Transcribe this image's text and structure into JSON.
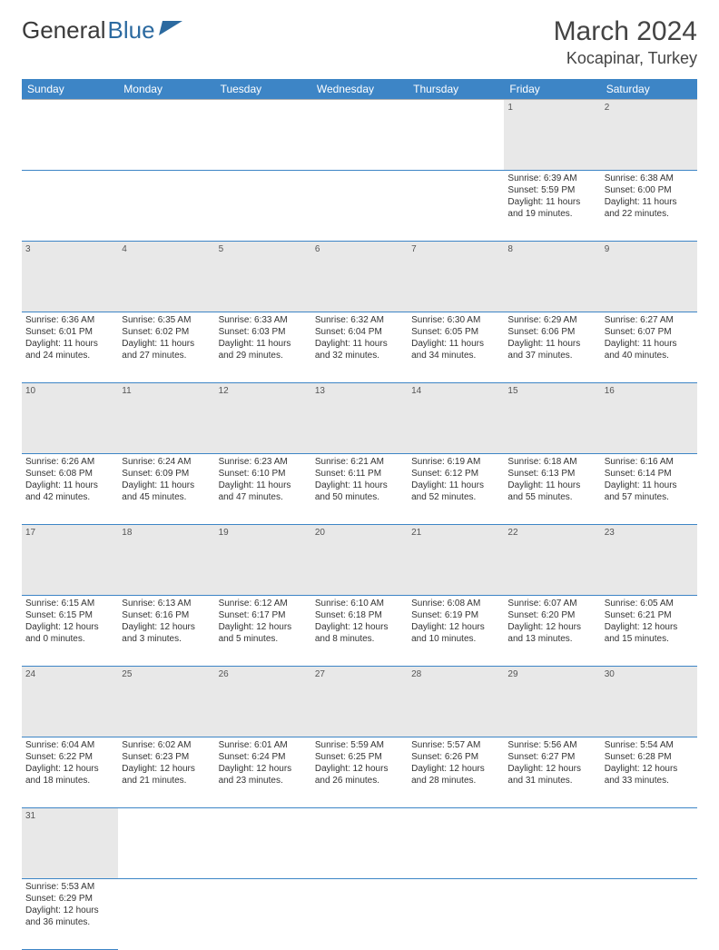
{
  "logo": {
    "text1": "General",
    "text2": "Blue"
  },
  "title": "March 2024",
  "location": "Kocapinar, Turkey",
  "colors": {
    "header_bg": "#3d85c6",
    "header_text": "#ffffff",
    "daynum_bg": "#e8e8e8",
    "row_divider": "#3d85c6",
    "body_text": "#333333"
  },
  "dayHeaders": [
    "Sunday",
    "Monday",
    "Tuesday",
    "Wednesday",
    "Thursday",
    "Friday",
    "Saturday"
  ],
  "weeks": [
    [
      null,
      null,
      null,
      null,
      null,
      {
        "n": "1",
        "sunrise": "6:39 AM",
        "sunset": "5:59 PM",
        "daylight": "11 hours and 19 minutes."
      },
      {
        "n": "2",
        "sunrise": "6:38 AM",
        "sunset": "6:00 PM",
        "daylight": "11 hours and 22 minutes."
      }
    ],
    [
      {
        "n": "3",
        "sunrise": "6:36 AM",
        "sunset": "6:01 PM",
        "daylight": "11 hours and 24 minutes."
      },
      {
        "n": "4",
        "sunrise": "6:35 AM",
        "sunset": "6:02 PM",
        "daylight": "11 hours and 27 minutes."
      },
      {
        "n": "5",
        "sunrise": "6:33 AM",
        "sunset": "6:03 PM",
        "daylight": "11 hours and 29 minutes."
      },
      {
        "n": "6",
        "sunrise": "6:32 AM",
        "sunset": "6:04 PM",
        "daylight": "11 hours and 32 minutes."
      },
      {
        "n": "7",
        "sunrise": "6:30 AM",
        "sunset": "6:05 PM",
        "daylight": "11 hours and 34 minutes."
      },
      {
        "n": "8",
        "sunrise": "6:29 AM",
        "sunset": "6:06 PM",
        "daylight": "11 hours and 37 minutes."
      },
      {
        "n": "9",
        "sunrise": "6:27 AM",
        "sunset": "6:07 PM",
        "daylight": "11 hours and 40 minutes."
      }
    ],
    [
      {
        "n": "10",
        "sunrise": "6:26 AM",
        "sunset": "6:08 PM",
        "daylight": "11 hours and 42 minutes."
      },
      {
        "n": "11",
        "sunrise": "6:24 AM",
        "sunset": "6:09 PM",
        "daylight": "11 hours and 45 minutes."
      },
      {
        "n": "12",
        "sunrise": "6:23 AM",
        "sunset": "6:10 PM",
        "daylight": "11 hours and 47 minutes."
      },
      {
        "n": "13",
        "sunrise": "6:21 AM",
        "sunset": "6:11 PM",
        "daylight": "11 hours and 50 minutes."
      },
      {
        "n": "14",
        "sunrise": "6:19 AM",
        "sunset": "6:12 PM",
        "daylight": "11 hours and 52 minutes."
      },
      {
        "n": "15",
        "sunrise": "6:18 AM",
        "sunset": "6:13 PM",
        "daylight": "11 hours and 55 minutes."
      },
      {
        "n": "16",
        "sunrise": "6:16 AM",
        "sunset": "6:14 PM",
        "daylight": "11 hours and 57 minutes."
      }
    ],
    [
      {
        "n": "17",
        "sunrise": "6:15 AM",
        "sunset": "6:15 PM",
        "daylight": "12 hours and 0 minutes."
      },
      {
        "n": "18",
        "sunrise": "6:13 AM",
        "sunset": "6:16 PM",
        "daylight": "12 hours and 3 minutes."
      },
      {
        "n": "19",
        "sunrise": "6:12 AM",
        "sunset": "6:17 PM",
        "daylight": "12 hours and 5 minutes."
      },
      {
        "n": "20",
        "sunrise": "6:10 AM",
        "sunset": "6:18 PM",
        "daylight": "12 hours and 8 minutes."
      },
      {
        "n": "21",
        "sunrise": "6:08 AM",
        "sunset": "6:19 PM",
        "daylight": "12 hours and 10 minutes."
      },
      {
        "n": "22",
        "sunrise": "6:07 AM",
        "sunset": "6:20 PM",
        "daylight": "12 hours and 13 minutes."
      },
      {
        "n": "23",
        "sunrise": "6:05 AM",
        "sunset": "6:21 PM",
        "daylight": "12 hours and 15 minutes."
      }
    ],
    [
      {
        "n": "24",
        "sunrise": "6:04 AM",
        "sunset": "6:22 PM",
        "daylight": "12 hours and 18 minutes."
      },
      {
        "n": "25",
        "sunrise": "6:02 AM",
        "sunset": "6:23 PM",
        "daylight": "12 hours and 21 minutes."
      },
      {
        "n": "26",
        "sunrise": "6:01 AM",
        "sunset": "6:24 PM",
        "daylight": "12 hours and 23 minutes."
      },
      {
        "n": "27",
        "sunrise": "5:59 AM",
        "sunset": "6:25 PM",
        "daylight": "12 hours and 26 minutes."
      },
      {
        "n": "28",
        "sunrise": "5:57 AM",
        "sunset": "6:26 PM",
        "daylight": "12 hours and 28 minutes."
      },
      {
        "n": "29",
        "sunrise": "5:56 AM",
        "sunset": "6:27 PM",
        "daylight": "12 hours and 31 minutes."
      },
      {
        "n": "30",
        "sunrise": "5:54 AM",
        "sunset": "6:28 PM",
        "daylight": "12 hours and 33 minutes."
      }
    ],
    [
      {
        "n": "31",
        "sunrise": "5:53 AM",
        "sunset": "6:29 PM",
        "daylight": "12 hours and 36 minutes."
      },
      null,
      null,
      null,
      null,
      null,
      null
    ]
  ],
  "labels": {
    "sunrise": "Sunrise: ",
    "sunset": "Sunset: ",
    "daylight": "Daylight: "
  }
}
